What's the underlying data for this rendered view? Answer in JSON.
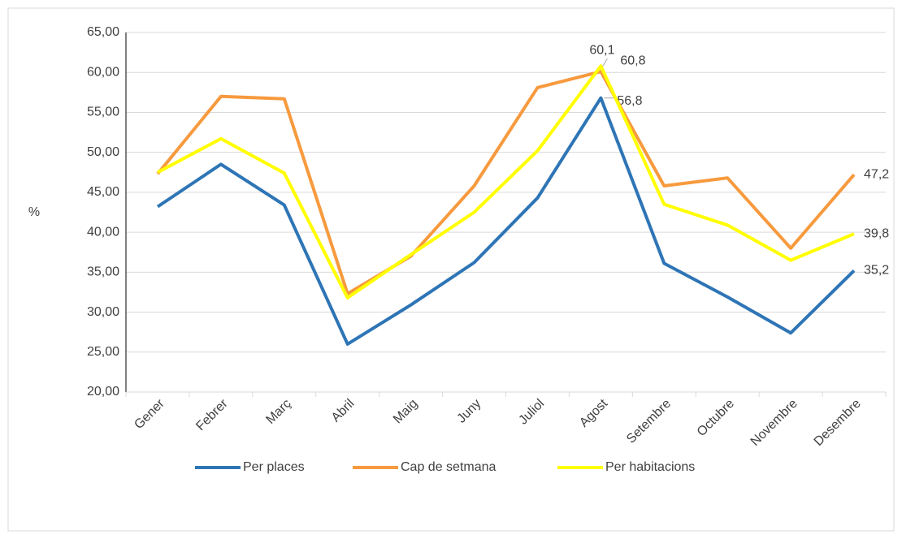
{
  "chart_data": {
    "type": "line",
    "y_label": "%",
    "categories": [
      "Gener",
      "Febrer",
      "Març",
      "Abril",
      "Maig",
      "Juny",
      "Juliol",
      "Agost",
      "Setembre",
      "Octubre",
      "Novembre",
      "Desembre"
    ],
    "series": [
      {
        "name": "Per places",
        "color": "#2e75b6",
        "values": [
          43.2,
          48.5,
          43.4,
          26.0,
          30.9,
          36.2,
          44.3,
          56.8,
          36.1,
          31.9,
          27.4,
          35.2
        ],
        "value_labels": [
          null,
          null,
          null,
          null,
          null,
          null,
          null,
          "56,8",
          null,
          null,
          null,
          "35,2"
        ]
      },
      {
        "name": "Cap de setmana",
        "color": "#f79a3e",
        "values": [
          47.3,
          57.0,
          56.7,
          32.3,
          37.0,
          45.8,
          58.1,
          60.1,
          45.8,
          46.8,
          38.0,
          47.2
        ],
        "value_labels": [
          null,
          null,
          null,
          null,
          null,
          null,
          null,
          "60,1",
          null,
          null,
          null,
          "47,2"
        ]
      },
      {
        "name": "Per habitacions",
        "color": "#ffff00",
        "values": [
          47.5,
          51.7,
          47.4,
          31.8,
          37.2,
          42.5,
          50.2,
          60.8,
          43.5,
          40.9,
          36.5,
          39.8
        ],
        "value_labels": [
          null,
          null,
          null,
          null,
          null,
          null,
          null,
          "60,8",
          null,
          null,
          null,
          "39,8"
        ]
      }
    ],
    "ylim": [
      20,
      65
    ],
    "yticks": [
      {
        "value": 20,
        "label": "20,00"
      },
      {
        "value": 25,
        "label": "25,00"
      },
      {
        "value": 30,
        "label": "30,00"
      },
      {
        "value": 35,
        "label": "35,00"
      },
      {
        "value": 40,
        "label": "40,00"
      },
      {
        "value": 45,
        "label": "45,00"
      },
      {
        "value": 50,
        "label": "50,00"
      },
      {
        "value": 55,
        "label": "55,00"
      },
      {
        "value": 60,
        "label": "60,00"
      },
      {
        "value": 65,
        "label": "65,00"
      }
    ],
    "grid": true,
    "legend": "bottom"
  }
}
